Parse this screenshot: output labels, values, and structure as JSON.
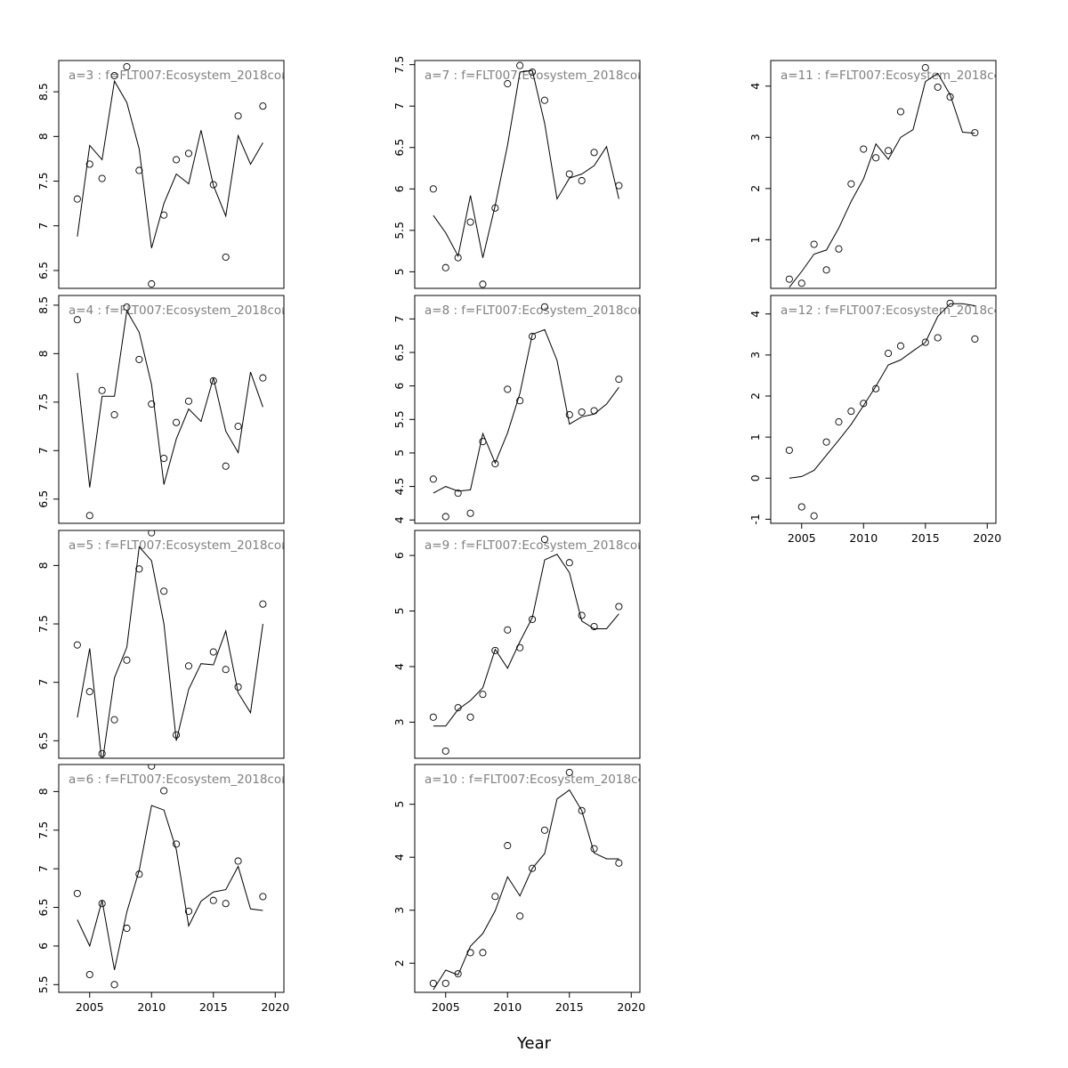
{
  "chart_data": {
    "type": "multi-panel",
    "xlabel": "Year",
    "panels": [
      {
        "title": "a=3  :  f=FLT007:Ecosystem_2018cor",
        "type": "line",
        "x_ticks": [],
        "y_ticks": [
          6.5,
          7.0,
          7.5,
          8.0,
          8.5
        ],
        "ylim": [
          6.3,
          8.85
        ],
        "series": [
          {
            "style": "line",
            "x": [
              2004,
              2005,
              2006,
              2007,
              2008,
              2009,
              2010,
              2011,
              2012,
              2013,
              2014,
              2015,
              2016,
              2017,
              2018,
              2019
            ],
            "y": [
              6.88,
              7.9,
              7.74,
              8.62,
              8.38,
              7.86,
              6.75,
              7.25,
              7.58,
              7.47,
              8.07,
              7.45,
              7.11,
              8.01,
              7.69,
              7.93
            ]
          },
          {
            "style": "points",
            "x": [
              2004,
              2005,
              2006,
              2007,
              2008,
              2009,
              2010,
              2011,
              2012,
              2013,
              2015,
              2016,
              2017,
              2019
            ],
            "y": [
              7.3,
              7.69,
              7.53,
              8.68,
              8.78,
              7.62,
              6.35,
              7.12,
              7.74,
              7.81,
              7.46,
              6.65,
              8.23,
              8.34
            ]
          }
        ]
      },
      {
        "title": "a=4  :  f=FLT007:Ecosystem_2018cor",
        "type": "line",
        "x_ticks": [],
        "y_ticks": [
          6.5,
          7.0,
          7.5,
          8.0,
          8.5
        ],
        "ylim": [
          6.25,
          8.6
        ],
        "series": [
          {
            "style": "line",
            "x": [
              2004,
              2005,
              2006,
              2007,
              2008,
              2009,
              2010,
              2011,
              2012,
              2013,
              2014,
              2015,
              2016,
              2017,
              2018,
              2019
            ],
            "y": [
              7.8,
              6.62,
              7.56,
              7.56,
              8.44,
              8.22,
              7.68,
              6.65,
              7.12,
              7.43,
              7.3,
              7.75,
              7.2,
              6.98,
              7.81,
              7.45
            ]
          },
          {
            "style": "points",
            "x": [
              2004,
              2005,
              2006,
              2007,
              2008,
              2009,
              2010,
              2011,
              2012,
              2013,
              2015,
              2016,
              2017,
              2019
            ],
            "y": [
              8.35,
              6.33,
              7.62,
              7.37,
              8.48,
              7.94,
              7.48,
              6.92,
              7.29,
              7.51,
              7.72,
              6.84,
              7.25,
              7.75
            ]
          }
        ]
      },
      {
        "title": "a=5  :  f=FLT007:Ecosystem_2018cor",
        "type": "line",
        "x_ticks": [],
        "y_ticks": [
          6.5,
          7.0,
          7.5,
          8.0
        ],
        "ylim": [
          6.35,
          8.3
        ],
        "series": [
          {
            "style": "line",
            "x": [
              2004,
              2005,
              2006,
              2007,
              2008,
              2009,
              2010,
              2011,
              2012,
              2013,
              2014,
              2015,
              2016,
              2017,
              2018,
              2019
            ],
            "y": [
              6.7,
              7.29,
              6.3,
              7.04,
              7.3,
              8.16,
              8.04,
              7.5,
              6.5,
              6.94,
              7.16,
              7.15,
              7.44,
              6.91,
              6.74,
              7.5
            ]
          },
          {
            "style": "points",
            "x": [
              2004,
              2005,
              2006,
              2007,
              2008,
              2009,
              2010,
              2011,
              2012,
              2013,
              2015,
              2016,
              2017,
              2019
            ],
            "y": [
              7.32,
              6.92,
              6.39,
              6.68,
              7.19,
              7.97,
              8.28,
              7.78,
              6.55,
              7.14,
              7.26,
              7.11,
              6.96,
              7.67
            ]
          }
        ]
      },
      {
        "title": "a=6  :  f=FLT007:Ecosystem_2018cor",
        "type": "line",
        "x_ticks": [
          2005,
          2010,
          2015,
          2020
        ],
        "y_ticks": [
          5.5,
          6.0,
          6.5,
          7.0,
          7.5,
          8.0
        ],
        "ylim": [
          5.4,
          8.35
        ],
        "series": [
          {
            "style": "line",
            "x": [
              2004,
              2005,
              2006,
              2007,
              2008,
              2009,
              2010,
              2011,
              2012,
              2013,
              2014,
              2015,
              2016,
              2017,
              2018,
              2019
            ],
            "y": [
              6.34,
              6.0,
              6.59,
              5.69,
              6.44,
              6.98,
              7.82,
              7.76,
              7.25,
              6.26,
              6.58,
              6.7,
              6.73,
              7.03,
              6.48,
              6.46
            ]
          },
          {
            "style": "points",
            "x": [
              2004,
              2005,
              2006,
              2007,
              2008,
              2009,
              2010,
              2011,
              2012,
              2013,
              2015,
              2016,
              2017,
              2019
            ],
            "y": [
              6.68,
              5.63,
              6.55,
              5.5,
              6.23,
              6.93,
              8.33,
              8.01,
              7.32,
              6.45,
              6.59,
              6.55,
              7.1,
              6.64
            ]
          }
        ]
      },
      {
        "title": "a=7  :  f=FLT007:Ecosystem_2018cor",
        "type": "line",
        "x_ticks": [],
        "y_ticks": [
          5.0,
          5.5,
          6.0,
          6.5,
          7.0,
          7.5
        ],
        "ylim": [
          4.8,
          7.55
        ],
        "series": [
          {
            "style": "line",
            "x": [
              2004,
              2005,
              2006,
              2007,
              2008,
              2009,
              2010,
              2011,
              2012,
              2013,
              2014,
              2015,
              2016,
              2017,
              2018,
              2019
            ],
            "y": [
              5.68,
              5.47,
              5.19,
              5.92,
              5.17,
              5.8,
              6.53,
              7.41,
              7.43,
              6.79,
              5.88,
              6.13,
              6.18,
              6.28,
              6.51,
              5.88
            ]
          },
          {
            "style": "points",
            "x": [
              2004,
              2005,
              2006,
              2007,
              2008,
              2009,
              2010,
              2011,
              2012,
              2013,
              2015,
              2016,
              2017,
              2019
            ],
            "y": [
              6.0,
              5.05,
              5.17,
              5.6,
              4.85,
              5.77,
              7.27,
              7.49,
              7.41,
              7.07,
              6.18,
              6.1,
              6.44,
              6.04
            ]
          }
        ]
      },
      {
        "title": "a=8  :  f=FLT007:Ecosystem_2018cor",
        "type": "line",
        "x_ticks": [],
        "y_ticks": [
          4.0,
          4.5,
          5.0,
          5.5,
          6.0,
          6.5,
          7.0
        ],
        "ylim": [
          3.95,
          7.35
        ],
        "series": [
          {
            "style": "line",
            "x": [
              2004,
              2005,
              2006,
              2007,
              2008,
              2009,
              2010,
              2011,
              2012,
              2013,
              2014,
              2015,
              2016,
              2017,
              2018,
              2019
            ],
            "y": [
              4.4,
              4.5,
              4.43,
              4.45,
              5.29,
              4.85,
              5.3,
              5.89,
              6.77,
              6.84,
              6.38,
              5.43,
              5.54,
              5.58,
              5.73,
              5.98
            ]
          },
          {
            "style": "points",
            "x": [
              2004,
              2005,
              2006,
              2007,
              2008,
              2009,
              2010,
              2011,
              2012,
              2013,
              2015,
              2016,
              2017,
              2019
            ],
            "y": [
              4.61,
              4.05,
              4.4,
              4.1,
              5.17,
              4.84,
              5.95,
              5.78,
              6.74,
              7.18,
              5.57,
              5.61,
              5.63,
              6.1
            ]
          }
        ]
      },
      {
        "title": "a=9  :  f=FLT007:Ecosystem_2018cor",
        "type": "line",
        "x_ticks": [],
        "y_ticks": [
          3,
          4,
          5,
          6
        ],
        "ylim": [
          2.35,
          6.45
        ],
        "series": [
          {
            "style": "line",
            "x": [
              2004,
              2005,
              2006,
              2007,
              2008,
              2009,
              2010,
              2011,
              2012,
              2013,
              2014,
              2015,
              2016,
              2017,
              2018,
              2019
            ],
            "y": [
              2.93,
              2.93,
              3.23,
              3.39,
              3.62,
              4.31,
              3.97,
              4.45,
              4.88,
              5.92,
              6.02,
              5.69,
              4.82,
              4.68,
              4.68,
              4.95
            ]
          },
          {
            "style": "points",
            "x": [
              2004,
              2005,
              2006,
              2007,
              2008,
              2009,
              2010,
              2011,
              2012,
              2013,
              2015,
              2016,
              2017,
              2019
            ],
            "y": [
              3.09,
              2.48,
              3.26,
              3.09,
              3.5,
              4.29,
              4.66,
              4.34,
              4.85,
              6.29,
              5.87,
              4.92,
              4.72,
              5.08
            ]
          }
        ]
      },
      {
        "title": "a=10  :  f=FLT007:Ecosystem_2018cor",
        "type": "line",
        "x_ticks": [
          2005,
          2010,
          2015,
          2020
        ],
        "y_ticks": [
          2,
          3,
          4,
          5
        ],
        "ylim": [
          1.45,
          5.75
        ],
        "series": [
          {
            "style": "line",
            "x": [
              2004,
              2005,
              2006,
              2007,
              2008,
              2009,
              2010,
              2011,
              2012,
              2013,
              2014,
              2015,
              2016,
              2017,
              2018,
              2019
            ],
            "y": [
              1.5,
              1.87,
              1.78,
              2.32,
              2.56,
              2.99,
              3.63,
              3.27,
              3.79,
              4.07,
              5.1,
              5.27,
              4.88,
              4.08,
              3.97,
              3.97
            ]
          },
          {
            "style": "points",
            "x": [
              2004,
              2005,
              2006,
              2007,
              2008,
              2009,
              2010,
              2011,
              2012,
              2013,
              2015,
              2016,
              2017,
              2019
            ],
            "y": [
              1.62,
              1.62,
              1.8,
              2.2,
              2.2,
              3.26,
              4.22,
              2.89,
              3.79,
              4.51,
              5.6,
              4.88,
              4.16,
              3.89
            ]
          }
        ]
      },
      {
        "title": "a=11  :  f=FLT007:Ecosystem_2018cor",
        "type": "line",
        "x_ticks": [],
        "y_ticks": [
          1,
          2,
          3,
          4
        ],
        "ylim": [
          0.05,
          4.5
        ],
        "series": [
          {
            "style": "line",
            "x": [
              2004,
              2005,
              2006,
              2007,
              2008,
              2009,
              2010,
              2011,
              2012,
              2013,
              2014,
              2015,
              2016,
              2017,
              2018,
              2019
            ],
            "y": [
              0.07,
              0.38,
              0.72,
              0.8,
              1.23,
              1.75,
              2.19,
              2.87,
              2.57,
              3.0,
              3.15,
              4.09,
              4.25,
              3.83,
              3.1,
              3.08
            ]
          },
          {
            "style": "points",
            "x": [
              2004,
              2005,
              2006,
              2007,
              2008,
              2009,
              2010,
              2011,
              2012,
              2013,
              2015,
              2016,
              2017,
              2019
            ],
            "y": [
              0.23,
              0.15,
              0.91,
              0.41,
              0.82,
              2.09,
              2.77,
              2.6,
              2.74,
              3.5,
              4.36,
              3.98,
              3.79,
              3.09
            ]
          }
        ]
      },
      {
        "title": "a=12  :  f=FLT007:Ecosystem_2018cor",
        "type": "line",
        "x_ticks": [
          2005,
          2010,
          2015,
          2020
        ],
        "y_ticks": [
          -1,
          0,
          1,
          2,
          3,
          4
        ],
        "ylim": [
          -1.1,
          4.45
        ],
        "series": [
          {
            "style": "line",
            "x": [
              2004,
              2005,
              2006,
              2007,
              2008,
              2009,
              2010,
              2011,
              2012,
              2013,
              2014,
              2015,
              2016,
              2017,
              2018,
              2019
            ],
            "y": [
              0.0,
              0.04,
              0.19,
              0.56,
              0.93,
              1.31,
              1.77,
              2.24,
              2.76,
              2.88,
              3.1,
              3.31,
              3.94,
              4.25,
              4.25,
              4.2
            ]
          },
          {
            "style": "points",
            "x": [
              2004,
              2005,
              2006,
              2007,
              2008,
              2009,
              2010,
              2011,
              2012,
              2013,
              2015,
              2016,
              2017,
              2019
            ],
            "y": [
              0.68,
              -0.7,
              -0.92,
              0.88,
              1.37,
              1.63,
              1.82,
              2.18,
              3.04,
              3.22,
              3.31,
              3.42,
              4.26,
              3.39
            ]
          }
        ]
      }
    ]
  }
}
